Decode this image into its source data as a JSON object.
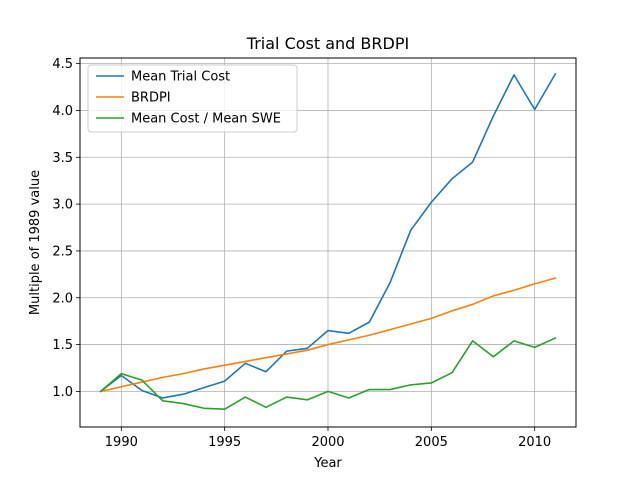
{
  "chart_data": {
    "type": "line",
    "title": "Trial Cost and BRDPI",
    "xlabel": "Year",
    "ylabel": "Multiple of 1989 value",
    "xlim": [
      1988,
      2012
    ],
    "ylim": [
      0.62,
      4.56
    ],
    "x_ticks": [
      1990,
      1995,
      2000,
      2005,
      2010
    ],
    "y_ticks": [
      1.0,
      1.5,
      2.0,
      2.5,
      3.0,
      3.5,
      4.0,
      4.5
    ],
    "x_tick_labels": [
      "1990",
      "1995",
      "2000",
      "2005",
      "2010"
    ],
    "y_tick_labels": [
      "1.0",
      "1.5",
      "2.0",
      "2.5",
      "3.0",
      "3.5",
      "4.0",
      "4.5"
    ],
    "grid": true,
    "legend_position": "upper-left",
    "x": [
      1989,
      1990,
      1991,
      1992,
      1993,
      1994,
      1995,
      1996,
      1997,
      1998,
      1999,
      2000,
      2001,
      2002,
      2003,
      2004,
      2005,
      2006,
      2007,
      2008,
      2009,
      2010,
      2011
    ],
    "series": [
      {
        "name": "Mean Trial Cost",
        "color": "#1f77b4",
        "values": [
          1.0,
          1.17,
          1.01,
          0.93,
          0.97,
          1.04,
          1.11,
          1.3,
          1.21,
          1.43,
          1.46,
          1.65,
          1.62,
          1.74,
          2.16,
          2.72,
          3.02,
          3.27,
          3.45,
          3.94,
          4.38,
          4.01,
          4.39
        ]
      },
      {
        "name": "BRDPI",
        "color": "#ff7f0e",
        "values": [
          1.0,
          1.05,
          1.1,
          1.15,
          1.19,
          1.24,
          1.28,
          1.32,
          1.36,
          1.4,
          1.44,
          1.5,
          1.55,
          1.6,
          1.66,
          1.72,
          1.78,
          1.86,
          1.93,
          2.02,
          2.08,
          2.15,
          2.21
        ]
      },
      {
        "name": "Mean Cost / Mean SWE",
        "color": "#2ca02c",
        "values": [
          1.0,
          1.19,
          1.12,
          0.9,
          0.87,
          0.82,
          0.81,
          0.94,
          0.83,
          0.94,
          0.91,
          1.0,
          0.93,
          1.02,
          1.02,
          1.07,
          1.09,
          1.2,
          1.54,
          1.37,
          1.54,
          1.47,
          1.57
        ]
      }
    ]
  }
}
